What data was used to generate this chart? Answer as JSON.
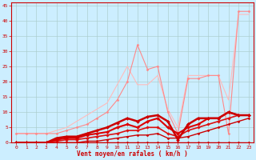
{
  "title": "",
  "xlabel": "Vent moyen/en rafales ( km/h )",
  "ylabel": "",
  "xlim": [
    -0.5,
    23.5
  ],
  "ylim": [
    0,
    46
  ],
  "yticks": [
    0,
    5,
    10,
    15,
    20,
    25,
    30,
    35,
    40,
    45
  ],
  "xticks": [
    0,
    1,
    2,
    3,
    4,
    5,
    6,
    7,
    8,
    9,
    10,
    11,
    12,
    13,
    14,
    15,
    16,
    17,
    18,
    19,
    20,
    21,
    22,
    23
  ],
  "bg_color": "#cceeff",
  "grid_color": "#aacccc",
  "lines": [
    {
      "x": [
        0,
        1,
        2,
        3,
        4,
        5,
        6,
        7,
        8,
        9,
        10,
        11,
        12,
        13,
        14,
        15,
        16,
        17,
        18,
        19,
        20,
        21,
        22,
        23
      ],
      "y": [
        3,
        3,
        3,
        3,
        4,
        5,
        7,
        9,
        11,
        13,
        19,
        25,
        19,
        19,
        22,
        11,
        5,
        22,
        22,
        22,
        22,
        14,
        42,
        42
      ],
      "color": "#ffbbbb",
      "linewidth": 0.8,
      "marker": null,
      "markersize": 0
    },
    {
      "x": [
        0,
        1,
        2,
        3,
        4,
        5,
        6,
        7,
        8,
        9,
        10,
        11,
        12,
        13,
        14,
        15,
        16,
        17,
        18,
        19,
        20,
        21,
        22,
        23
      ],
      "y": [
        3,
        3,
        3,
        3,
        3,
        4,
        5,
        6,
        8,
        10,
        14,
        20,
        32,
        24,
        25,
        10,
        3,
        21,
        21,
        22,
        22,
        3,
        43,
        43
      ],
      "color": "#ff8888",
      "linewidth": 0.8,
      "marker": "D",
      "markersize": 1.5
    },
    {
      "x": [
        0,
        1,
        2,
        3,
        4,
        5,
        6,
        7,
        8,
        9,
        10,
        11,
        12,
        13,
        14,
        15,
        16,
        17,
        18,
        19,
        20,
        21,
        22,
        23
      ],
      "y": [
        0,
        0,
        0,
        0,
        0,
        0,
        0,
        0,
        0,
        0,
        0,
        0,
        0,
        0,
        0,
        0,
        0,
        0,
        0,
        0,
        0,
        0,
        0,
        0
      ],
      "color": "#cc0000",
      "linewidth": 1.0,
      "marker": "D",
      "markersize": 1.5
    },
    {
      "x": [
        0,
        1,
        2,
        3,
        4,
        5,
        6,
        7,
        8,
        9,
        10,
        11,
        12,
        13,
        14,
        15,
        16,
        17,
        18,
        19,
        20,
        21,
        22,
        23
      ],
      "y": [
        0,
        0,
        0,
        0,
        0,
        0,
        0,
        0.5,
        0.5,
        1,
        1.5,
        2,
        2.5,
        2.5,
        3,
        1.5,
        1.5,
        2,
        3,
        4,
        5,
        6,
        7,
        8
      ],
      "color": "#cc0000",
      "linewidth": 1.0,
      "marker": "D",
      "markersize": 1.5
    },
    {
      "x": [
        0,
        1,
        2,
        3,
        4,
        5,
        6,
        7,
        8,
        9,
        10,
        11,
        12,
        13,
        14,
        15,
        16,
        17,
        18,
        19,
        20,
        21,
        22,
        23
      ],
      "y": [
        0,
        0,
        0,
        0,
        0.5,
        1,
        1,
        1.5,
        2,
        2.5,
        3,
        4,
        4,
        5,
        5,
        3,
        2,
        4,
        5,
        6,
        7,
        8,
        9,
        9
      ],
      "color": "#dd1111",
      "linewidth": 1.2,
      "marker": "D",
      "markersize": 1.8
    },
    {
      "x": [
        0,
        1,
        2,
        3,
        4,
        5,
        6,
        7,
        8,
        9,
        10,
        11,
        12,
        13,
        14,
        15,
        16,
        17,
        18,
        19,
        20,
        21,
        22,
        23
      ],
      "y": [
        0,
        0,
        0,
        0,
        1,
        1.5,
        1.5,
        2.5,
        3,
        3.5,
        5,
        6,
        5,
        7,
        8,
        5,
        3,
        5,
        6,
        8,
        8,
        10,
        9,
        9
      ],
      "color": "#dd0000",
      "linewidth": 1.5,
      "marker": "D",
      "markersize": 2
    },
    {
      "x": [
        0,
        1,
        2,
        3,
        4,
        5,
        6,
        7,
        8,
        9,
        10,
        11,
        12,
        13,
        14,
        15,
        16,
        17,
        18,
        19,
        20,
        21,
        22,
        23
      ],
      "y": [
        0,
        0,
        0,
        0,
        1.5,
        2,
        2,
        3,
        4,
        5,
        6.5,
        8,
        7,
        8.5,
        9,
        7,
        1,
        6,
        8,
        8,
        8,
        10,
        9,
        9
      ],
      "color": "#cc0000",
      "linewidth": 1.8,
      "marker": "D",
      "markersize": 2
    }
  ]
}
